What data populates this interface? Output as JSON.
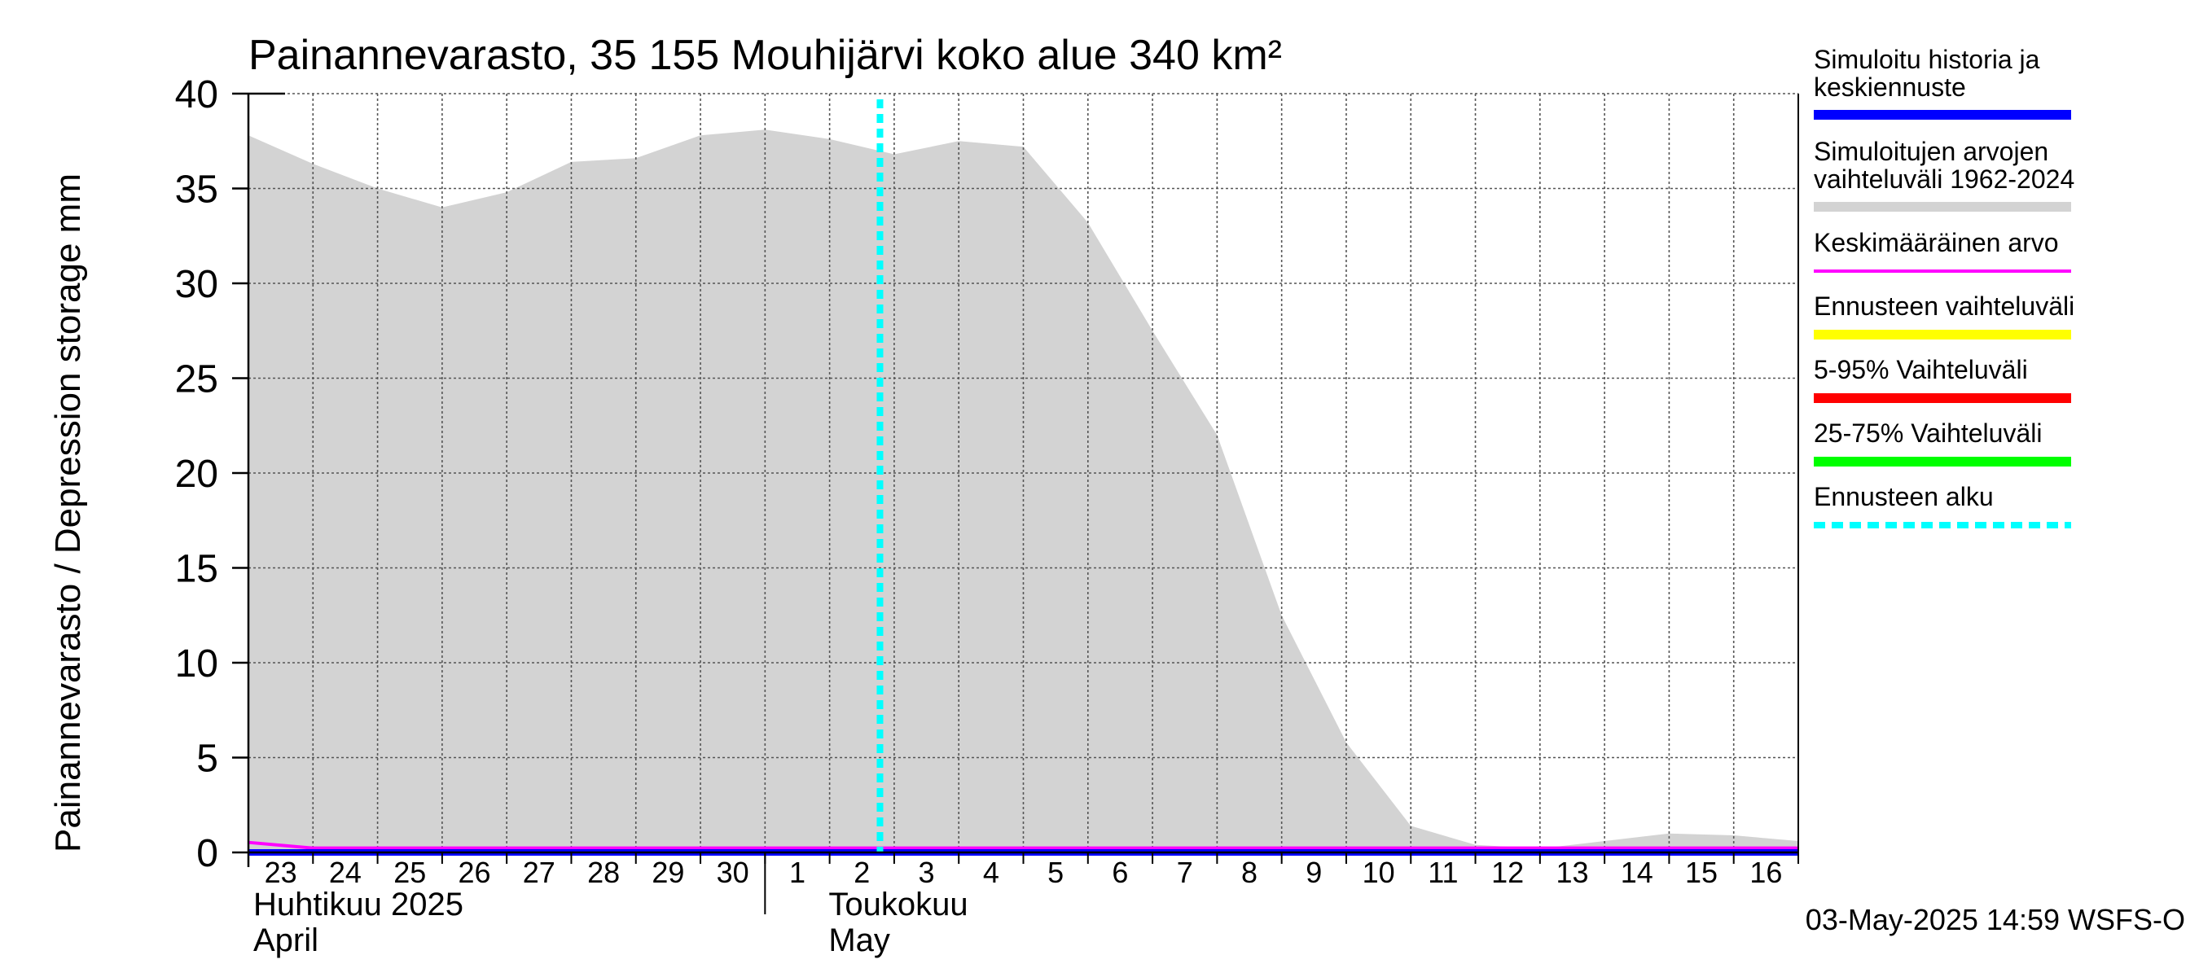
{
  "chart_data": {
    "type": "area",
    "title": "Painannevarasto, 35 155 Mouhijärvi koko alue 340 km²",
    "ylabel": "Painannevarasto / Depression storage    mm",
    "ylim": [
      0,
      40
    ],
    "yticks": [
      0,
      5,
      10,
      15,
      20,
      25,
      30,
      35,
      40
    ],
    "x_day_labels": [
      "23",
      "24",
      "25",
      "26",
      "27",
      "28",
      "29",
      "30",
      "1",
      "2",
      "3",
      "4",
      "5",
      "6",
      "7",
      "8",
      "9",
      "10",
      "11",
      "12",
      "13",
      "14",
      "15",
      "16"
    ],
    "month_labels": [
      {
        "fi": "Huhtikuu  2025",
        "en": "April"
      },
      {
        "fi": "Toukokuu",
        "en": "May"
      }
    ],
    "series": [
      {
        "name": "Simuloitujen arvojen vaihteluväli 1962-2024",
        "color": "#d3d3d3",
        "style": "area",
        "x": [
          "2025-04-23",
          "2025-04-24",
          "2025-04-25",
          "2025-04-26",
          "2025-04-27",
          "2025-04-28",
          "2025-04-29",
          "2025-04-30",
          "2025-05-01",
          "2025-05-02",
          "2025-05-03",
          "2025-05-04",
          "2025-05-05",
          "2025-05-06",
          "2025-05-07",
          "2025-05-08",
          "2025-05-09",
          "2025-05-10",
          "2025-05-11",
          "2025-05-12",
          "2025-05-13",
          "2025-05-14",
          "2025-05-15",
          "2025-05-16",
          "2025-05-17"
        ],
        "upper": [
          37.8,
          36.3,
          35.0,
          34.0,
          34.8,
          36.4,
          36.6,
          37.8,
          38.1,
          37.6,
          36.8,
          37.5,
          37.2,
          33.2,
          27.5,
          22.0,
          12.5,
          5.8,
          1.4,
          0.4,
          0.2,
          0.6,
          1.0,
          0.9,
          0.6
        ],
        "lower": [
          0,
          0,
          0,
          0,
          0,
          0,
          0,
          0,
          0,
          0,
          0,
          0,
          0,
          0,
          0,
          0,
          0,
          0,
          0,
          0,
          0,
          0,
          0,
          0,
          0
        ]
      },
      {
        "name": "Keskimääräinen arvo",
        "color": "#ff00ff",
        "style": "line",
        "x": [
          "2025-04-23",
          "2025-04-24",
          "2025-05-17"
        ],
        "values": [
          0.4,
          0.1,
          0.1
        ]
      },
      {
        "name": "Simuloitu historia ja keskiennuste",
        "color": "#0000ff",
        "style": "line",
        "x": [
          "2025-04-23",
          "2025-05-17"
        ],
        "values": [
          0.0,
          0.0
        ]
      }
    ],
    "forecast_start": "2025-05-03",
    "grid": true,
    "legend_placement": "right",
    "legend": [
      {
        "label": "Simuloitu historia ja keskiennuste",
        "color": "#0000ff",
        "style": "solid"
      },
      {
        "label": "Simuloitujen arvojen vaihteluväli 1962-2024",
        "color": "#d3d3d3",
        "style": "solid"
      },
      {
        "label": "Keskimääräinen arvo",
        "color": "#ff00ff",
        "style": "thin"
      },
      {
        "label": "Ennusteen vaihteluväli",
        "color": "#ffff00",
        "style": "solid"
      },
      {
        "label": "5-95% Vaihteluväli",
        "color": "#ff0000",
        "style": "solid"
      },
      {
        "label": "25-75% Vaihteluväli",
        "color": "#00ff00",
        "style": "solid"
      },
      {
        "label": "Ennusteen alku",
        "color": "#00ffff",
        "style": "dashed"
      }
    ],
    "footer": "03-May-2025 14:59 WSFS-O"
  }
}
